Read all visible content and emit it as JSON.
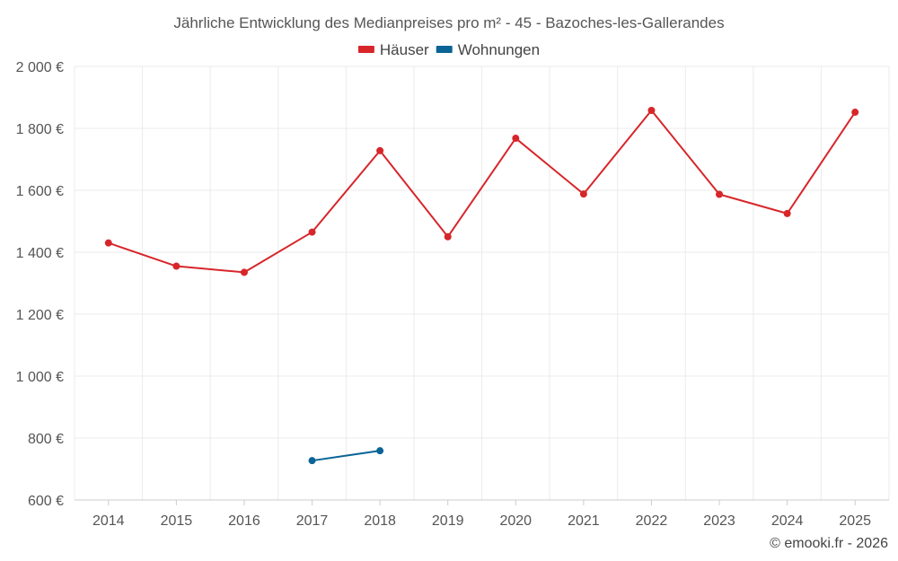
{
  "chart_data": {
    "type": "line",
    "title": "Jährliche Entwicklung des Medianpreises pro m² - 45 - Bazoches-les-Gallerandes",
    "x": [
      "2014",
      "2015",
      "2016",
      "2017",
      "2018",
      "2019",
      "2020",
      "2021",
      "2022",
      "2023",
      "2024",
      "2025"
    ],
    "ylim": [
      600,
      2000
    ],
    "yticks": [
      600,
      800,
      1000,
      1200,
      1400,
      1600,
      1800,
      2000
    ],
    "ytick_labels": [
      "600 €",
      "800 €",
      "1 000 €",
      "1 200 €",
      "1 400 €",
      "1 600 €",
      "1 800 €",
      "2 000 €"
    ],
    "grid": true,
    "legend_position": "top-center",
    "series": [
      {
        "name": "Häuser",
        "color": "#d7262a",
        "values": [
          1430,
          1355,
          1335,
          1465,
          1728,
          1450,
          1768,
          1588,
          1858,
          1587,
          1525,
          1852
        ]
      },
      {
        "name": "Wohnungen",
        "color": "#0a6496",
        "values": [
          null,
          null,
          null,
          727,
          759,
          null,
          null,
          null,
          null,
          null,
          null,
          null
        ]
      }
    ]
  },
  "credit": "© emooki.fr - 2026"
}
